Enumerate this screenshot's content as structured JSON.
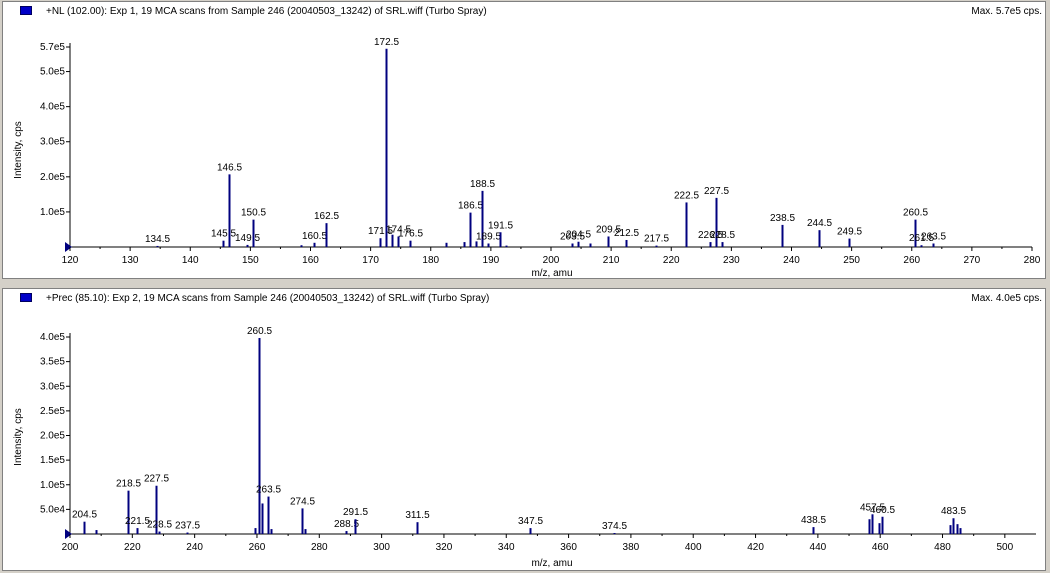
{
  "chart_data": [
    {
      "type": "bar",
      "title": "+NL (102.00): Exp 1, 19 MCA scans from Sample 246 (20040503_13242) of SRL.wiff (Turbo Spray)",
      "max_label": "Max. 5.7e5 cps.",
      "xlabel": "m/z, amu",
      "ylabel": "Intensity, cps",
      "xlim": [
        120,
        280
      ],
      "ylim": [
        0,
        570000
      ],
      "xticks": [
        120,
        130,
        140,
        150,
        160,
        170,
        180,
        190,
        200,
        210,
        220,
        230,
        240,
        250,
        260,
        270,
        280
      ],
      "yticks": [
        {
          "value": 100000,
          "label": "1.0e5"
        },
        {
          "value": 200000,
          "label": "2.0e5"
        },
        {
          "value": 300000,
          "label": "3.0e5"
        },
        {
          "value": 400000,
          "label": "4.0e5"
        },
        {
          "value": 500000,
          "label": "5.0e5"
        },
        {
          "value": 570000,
          "label": "5.7e5"
        }
      ],
      "peaks": [
        {
          "x": 134.5,
          "y": 3000,
          "label": "134.5"
        },
        {
          "x": 145.5,
          "y": 18000,
          "label": "145.5"
        },
        {
          "x": 146.5,
          "y": 207000,
          "label": "146.5"
        },
        {
          "x": 149.5,
          "y": 6000,
          "label": "149.5"
        },
        {
          "x": 150.5,
          "y": 78000,
          "label": "150.5"
        },
        {
          "x": 158.5,
          "y": 5000
        },
        {
          "x": 160.5,
          "y": 12000,
          "label": "160.5"
        },
        {
          "x": 162.5,
          "y": 68000,
          "label": "162.5"
        },
        {
          "x": 171.5,
          "y": 25000,
          "label": "171.5"
        },
        {
          "x": 172.5,
          "y": 565000,
          "label": "172.5"
        },
        {
          "x": 173.5,
          "y": 35000
        },
        {
          "x": 174.5,
          "y": 30000,
          "label": "174.5"
        },
        {
          "x": 176.5,
          "y": 18000,
          "label": "176.5"
        },
        {
          "x": 182.5,
          "y": 12000
        },
        {
          "x": 185.5,
          "y": 14000
        },
        {
          "x": 186.5,
          "y": 98000,
          "label": "186.5"
        },
        {
          "x": 187.5,
          "y": 16000
        },
        {
          "x": 188.5,
          "y": 160000,
          "label": "188.5"
        },
        {
          "x": 189.5,
          "y": 10000,
          "label": "189.5"
        },
        {
          "x": 191.5,
          "y": 42000,
          "label": "191.5"
        },
        {
          "x": 192.5,
          "y": 4000
        },
        {
          "x": 203.5,
          "y": 10000,
          "label": "203.5"
        },
        {
          "x": 204.5,
          "y": 15000,
          "label": "204.5"
        },
        {
          "x": 206.5,
          "y": 10000
        },
        {
          "x": 209.5,
          "y": 30000,
          "label": "209.5"
        },
        {
          "x": 212.5,
          "y": 20000,
          "label": "212.5"
        },
        {
          "x": 217.5,
          "y": 4000,
          "label": "217.5"
        },
        {
          "x": 222.5,
          "y": 127000,
          "label": "222.5"
        },
        {
          "x": 226.5,
          "y": 14000,
          "label": "226.5"
        },
        {
          "x": 227.5,
          "y": 140000,
          "label": "227.5"
        },
        {
          "x": 228.5,
          "y": 14000,
          "label": "228.5"
        },
        {
          "x": 238.5,
          "y": 63000,
          "label": "238.5"
        },
        {
          "x": 244.5,
          "y": 48000,
          "label": "244.5"
        },
        {
          "x": 249.5,
          "y": 24000,
          "label": "249.5"
        },
        {
          "x": 260.5,
          "y": 78000,
          "label": "260.5"
        },
        {
          "x": 261.5,
          "y": 5000,
          "label": "261.5"
        },
        {
          "x": 263.5,
          "y": 10000,
          "label": "263.5"
        }
      ]
    },
    {
      "type": "bar",
      "title": "+Prec (85.10): Exp 2, 19 MCA scans from Sample 246 (20040503_13242) of SRL.wiff (Turbo Spray)",
      "max_label": "Max. 4.0e5 cps.",
      "xlabel": "m/z, amu",
      "ylabel": "Intensity, cps",
      "xlim": [
        200,
        510
      ],
      "ylim": [
        0,
        400000
      ],
      "xticks": [
        200,
        220,
        240,
        260,
        280,
        300,
        320,
        340,
        360,
        380,
        400,
        420,
        440,
        460,
        480,
        500
      ],
      "yticks": [
        {
          "value": 50000,
          "label": "5.0e4"
        },
        {
          "value": 100000,
          "label": "1.0e5"
        },
        {
          "value": 150000,
          "label": "1.5e5"
        },
        {
          "value": 200000,
          "label": "2.0e5"
        },
        {
          "value": 250000,
          "label": "2.5e5"
        },
        {
          "value": 300000,
          "label": "3.0e5"
        },
        {
          "value": 350000,
          "label": "3.5e5"
        },
        {
          "value": 400000,
          "label": "4.0e5"
        }
      ],
      "peaks": [
        {
          "x": 204.5,
          "y": 25000,
          "label": "204.5"
        },
        {
          "x": 208.5,
          "y": 8000
        },
        {
          "x": 218.5,
          "y": 88000,
          "label": "218.5"
        },
        {
          "x": 221.5,
          "y": 12000,
          "label": "221.5"
        },
        {
          "x": 227.5,
          "y": 98000,
          "label": "227.5"
        },
        {
          "x": 228.5,
          "y": 5000,
          "label": "228.5"
        },
        {
          "x": 237.5,
          "y": 3000,
          "label": "237.5"
        },
        {
          "x": 259.5,
          "y": 12000
        },
        {
          "x": 260.5,
          "y": 398000,
          "label": "260.5"
        },
        {
          "x": 261.5,
          "y": 62000
        },
        {
          "x": 263.5,
          "y": 76000,
          "label": "263.5"
        },
        {
          "x": 264.5,
          "y": 10000
        },
        {
          "x": 274.5,
          "y": 52000,
          "label": "274.5"
        },
        {
          "x": 275.5,
          "y": 10000
        },
        {
          "x": 288.5,
          "y": 6000,
          "label": "288.5"
        },
        {
          "x": 291.5,
          "y": 30000,
          "label": "291.5"
        },
        {
          "x": 311.5,
          "y": 24000,
          "label": "311.5"
        },
        {
          "x": 347.5,
          "y": 12000,
          "label": "347.5"
        },
        {
          "x": 374.5,
          "y": 2000,
          "label": "374.5"
        },
        {
          "x": 438.5,
          "y": 14000,
          "label": "438.5"
        },
        {
          "x": 456.5,
          "y": 30000
        },
        {
          "x": 457.5,
          "y": 40000,
          "label": "457.5"
        },
        {
          "x": 459.5,
          "y": 22000
        },
        {
          "x": 460.5,
          "y": 35000,
          "label": "460.5"
        },
        {
          "x": 482.5,
          "y": 18000
        },
        {
          "x": 483.5,
          "y": 32000,
          "label": "483.5"
        },
        {
          "x": 484.5,
          "y": 20000
        },
        {
          "x": 485.5,
          "y": 12000
        }
      ]
    }
  ],
  "colors": {
    "peak": "#00007f",
    "marker": "#0000c8",
    "frame_bg": "#d4d0c8"
  }
}
